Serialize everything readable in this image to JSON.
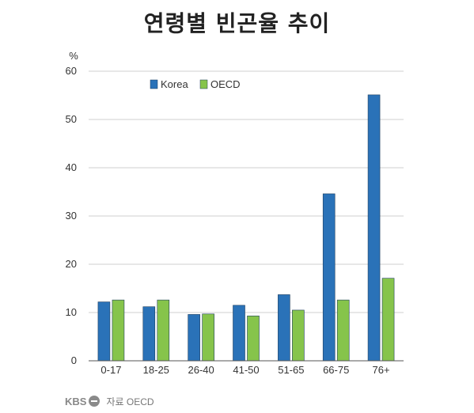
{
  "title": "연령별 빈곤율 추이",
  "footer": {
    "logo_text": "KBS",
    "source": "자료 OECD"
  },
  "colors": {
    "korea": "#2a72b8",
    "oecd": "#86c44b"
  },
  "chart_data": {
    "type": "bar",
    "title": "연령별 빈곤율 추이",
    "ylabel": "%",
    "ylim": [
      0,
      60
    ],
    "yticks": [
      "0",
      "10",
      "20",
      "30",
      "40",
      "50",
      "60"
    ],
    "categories": [
      "0-17",
      "18-25",
      "26-40",
      "41-50",
      "51-65",
      "66-75",
      "76+"
    ],
    "series": [
      {
        "name": "Korea",
        "values": [
          12.2,
          11.2,
          9.6,
          11.5,
          13.7,
          34.6,
          55.1
        ]
      },
      {
        "name": "OECD",
        "values": [
          12.6,
          12.6,
          9.7,
          9.3,
          10.5,
          12.6,
          17.1
        ]
      }
    ],
    "grid": true,
    "legend": "top-left"
  }
}
